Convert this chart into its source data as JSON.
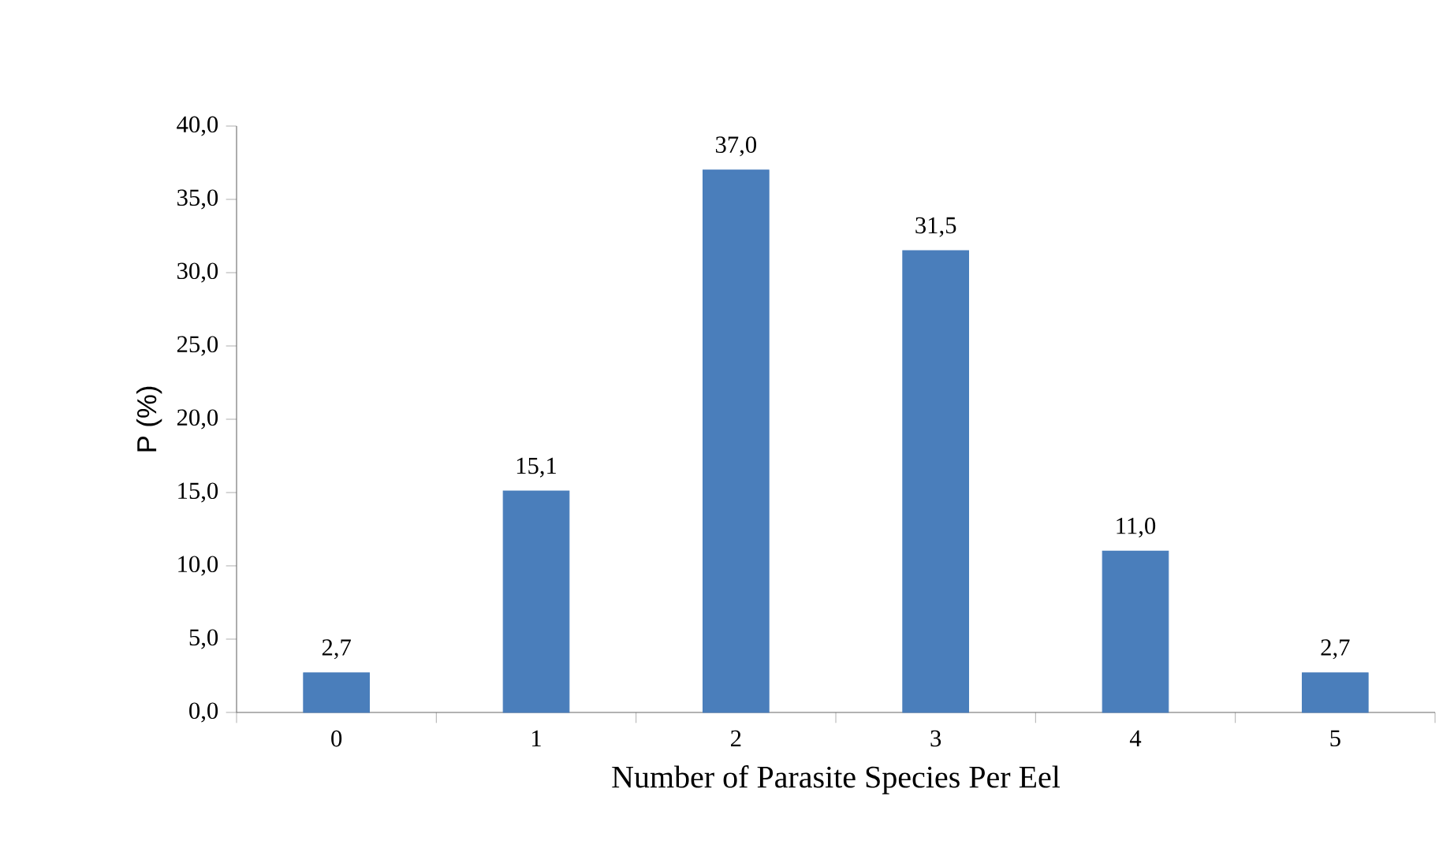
{
  "chart_data": {
    "type": "bar",
    "xlabel": "Number of Parasite Species Per Eel",
    "ylabel": "P (%)",
    "categories": [
      "0",
      "1",
      "2",
      "3",
      "4",
      "5"
    ],
    "values": [
      2.7,
      15.1,
      37.0,
      31.5,
      11.0,
      2.7
    ],
    "value_labels": [
      "2,7",
      "15,1",
      "37,0",
      "31,5",
      "11,0",
      "2,7"
    ],
    "color": "#4a7ebb",
    "ylim": [
      0,
      40
    ],
    "yticks": [
      {
        "value": 0,
        "label": "0,0"
      },
      {
        "value": 5,
        "label": "5,0"
      },
      {
        "value": 10,
        "label": "10,0"
      },
      {
        "value": 15,
        "label": "15,0"
      },
      {
        "value": 20,
        "label": "20,0"
      },
      {
        "value": 25,
        "label": "25,0"
      },
      {
        "value": 30,
        "label": "30,0"
      },
      {
        "value": 35,
        "label": "35,0"
      },
      {
        "value": 40,
        "label": "40,0"
      }
    ],
    "grid": false
  }
}
